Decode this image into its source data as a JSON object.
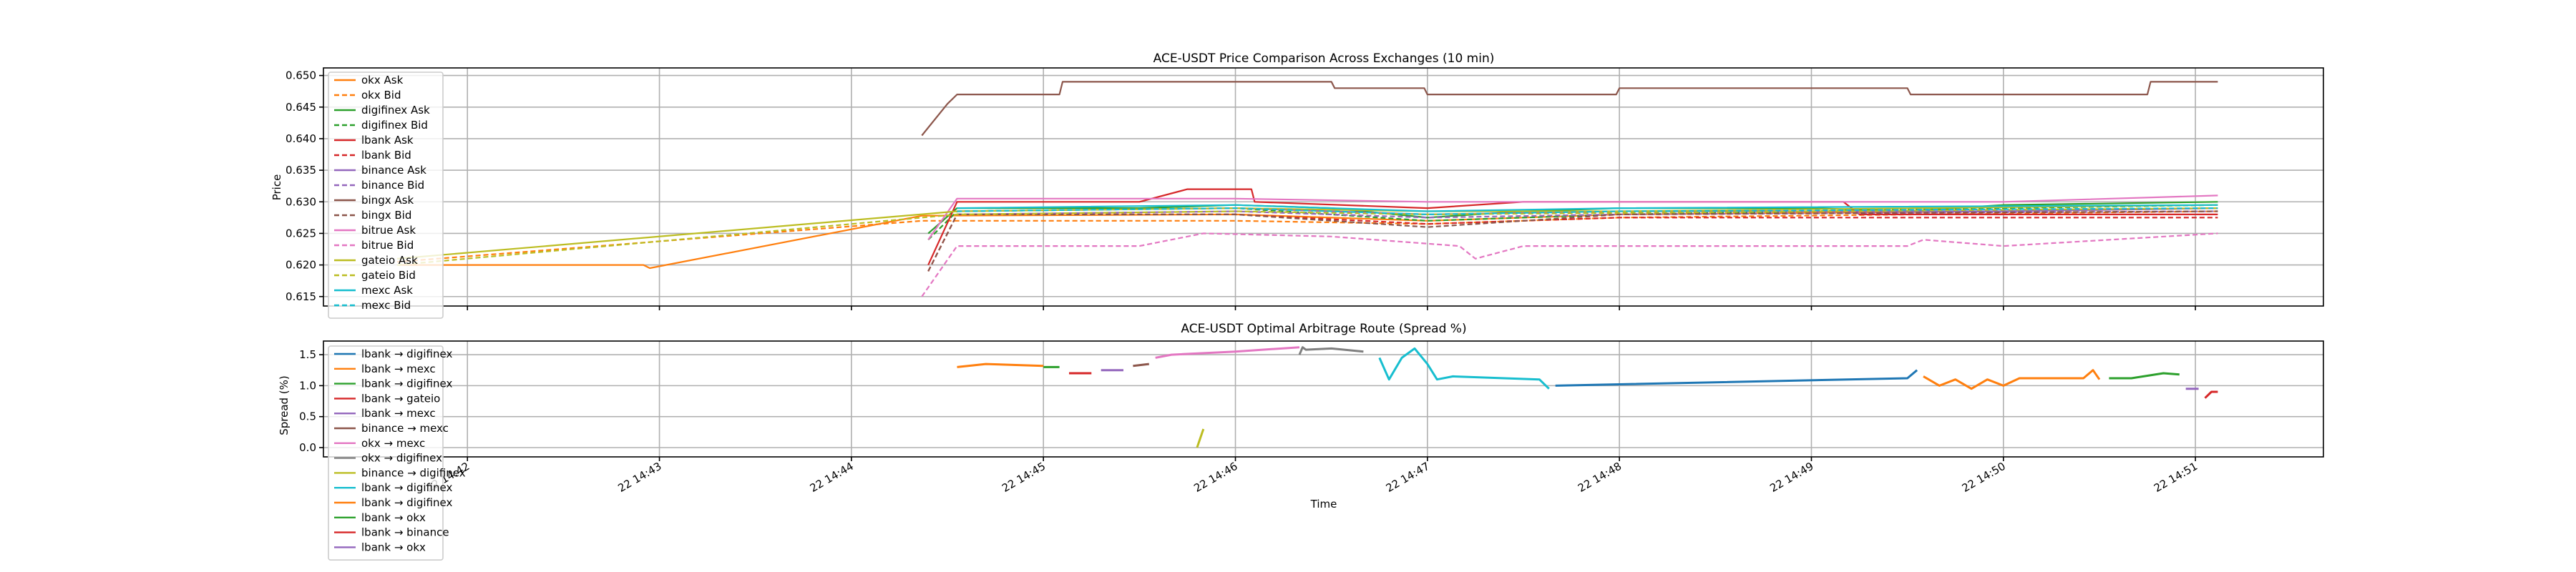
{
  "chart_data": [
    {
      "type": "line",
      "title": "ACE-USDT Price Comparison Across Exchanges (10 min)",
      "xlabel": "",
      "ylabel": "Price",
      "ylim": [
        0.6135,
        0.6512
      ],
      "yticks": [
        0.615,
        0.62,
        0.625,
        0.63,
        0.635,
        0.64,
        0.645,
        0.65
      ],
      "ytick_labels": [
        "0.615",
        "0.620",
        "0.625",
        "0.630",
        "0.635",
        "0.640",
        "0.645",
        "0.650"
      ],
      "grid": true,
      "legend_loc": "upper left",
      "series": [
        {
          "name": "okx Ask",
          "color": "#ff7f0e",
          "dash": "solid",
          "points": [
            [
              "14:41:38",
              0.62
            ],
            [
              "14:42:55",
              0.62
            ],
            [
              "14:42:57",
              0.6195
            ],
            [
              "14:44:22",
              0.6278
            ],
            [
              "14:46:00",
              0.628
            ],
            [
              "14:47:00",
              0.627
            ],
            [
              "14:48:00",
              0.628
            ],
            [
              "14:50:00",
              0.6285
            ],
            [
              "14:51:07",
              0.629
            ]
          ]
        },
        {
          "name": "okx Bid",
          "color": "#ff7f0e",
          "dash": "dash",
          "points": [
            [
              "14:41:38",
              0.6205
            ],
            [
              "14:44:22",
              0.627
            ],
            [
              "14:46:00",
              0.627
            ],
            [
              "14:47:00",
              0.6265
            ],
            [
              "14:48:00",
              0.6275
            ],
            [
              "14:51:07",
              0.6285
            ]
          ]
        },
        {
          "name": "digifinex Ask",
          "color": "#2ca02c",
          "dash": "solid",
          "points": [
            [
              "14:44:24",
              0.625
            ],
            [
              "14:44:33",
              0.629
            ],
            [
              "14:45:30",
              0.629
            ],
            [
              "14:46:00",
              0.6295
            ],
            [
              "14:46:30",
              0.629
            ],
            [
              "14:47:00",
              0.6275
            ],
            [
              "14:47:30",
              0.6285
            ],
            [
              "14:48:00",
              0.629
            ],
            [
              "14:49:00",
              0.629
            ],
            [
              "14:49:30",
              0.6285
            ],
            [
              "14:50:00",
              0.6295
            ],
            [
              "14:51:07",
              0.63
            ]
          ]
        },
        {
          "name": "digifinex Bid",
          "color": "#2ca02c",
          "dash": "dash",
          "points": [
            [
              "14:44:24",
              0.624
            ],
            [
              "14:44:33",
              0.6285
            ],
            [
              "14:46:00",
              0.629
            ],
            [
              "14:47:00",
              0.627
            ],
            [
              "14:48:00",
              0.628
            ],
            [
              "14:50:00",
              0.629
            ],
            [
              "14:51:07",
              0.6295
            ]
          ]
        },
        {
          "name": "lbank Ask",
          "color": "#d62728",
          "dash": "solid",
          "points": [
            [
              "14:44:24",
              0.62
            ],
            [
              "14:44:33",
              0.63
            ],
            [
              "14:45:30",
              0.63
            ],
            [
              "14:45:45",
              0.632
            ],
            [
              "14:46:05",
              0.632
            ],
            [
              "14:46:06",
              0.63
            ],
            [
              "14:47:00",
              0.629
            ],
            [
              "14:47:30",
              0.63
            ],
            [
              "14:49:10",
              0.63
            ],
            [
              "14:49:15",
              0.628
            ],
            [
              "14:51:07",
              0.628
            ]
          ]
        },
        {
          "name": "lbank Bid",
          "color": "#d62728",
          "dash": "dash",
          "points": [
            [
              "14:44:24",
              0.619
            ],
            [
              "14:44:33",
              0.628
            ],
            [
              "14:46:00",
              0.628
            ],
            [
              "14:47:00",
              0.6265
            ],
            [
              "14:48:00",
              0.6275
            ],
            [
              "14:51:07",
              0.6275
            ]
          ]
        },
        {
          "name": "binance Ask",
          "color": "#9467bd",
          "dash": "solid",
          "points": [
            [
              "14:44:33",
              0.6285
            ],
            [
              "14:46:00",
              0.629
            ],
            [
              "14:47:00",
              0.628
            ],
            [
              "14:48:00",
              0.6285
            ],
            [
              "14:50:00",
              0.6285
            ],
            [
              "14:51:07",
              0.629
            ]
          ]
        },
        {
          "name": "binance Bid",
          "color": "#9467bd",
          "dash": "dash",
          "points": [
            [
              "14:44:33",
              0.628
            ],
            [
              "14:46:00",
              0.6285
            ],
            [
              "14:47:00",
              0.6275
            ],
            [
              "14:48:00",
              0.628
            ],
            [
              "14:51:07",
              0.6285
            ]
          ]
        },
        {
          "name": "bingx Ask",
          "color": "#8c564b",
          "dash": "solid",
          "points": [
            [
              "14:44:22",
              0.6405
            ],
            [
              "14:44:30",
              0.6455
            ],
            [
              "14:44:33",
              0.647
            ],
            [
              "14:45:05",
              0.647
            ],
            [
              "14:45:06",
              0.649
            ],
            [
              "14:46:30",
              0.649
            ],
            [
              "14:46:31",
              0.648
            ],
            [
              "14:46:59",
              0.648
            ],
            [
              "14:47:00",
              0.647
            ],
            [
              "14:47:59",
              0.647
            ],
            [
              "14:48:00",
              0.648
            ],
            [
              "14:49:30",
              0.648
            ],
            [
              "14:49:31",
              0.647
            ],
            [
              "14:50:45",
              0.647
            ],
            [
              "14:50:46",
              0.649
            ],
            [
              "14:51:07",
              0.649
            ]
          ]
        },
        {
          "name": "bingx Bid",
          "color": "#8c564b",
          "dash": "dash",
          "points": [
            [
              "14:44:24",
              0.619
            ],
            [
              "14:44:33",
              0.628
            ],
            [
              "14:46:00",
              0.628
            ],
            [
              "14:47:00",
              0.626
            ],
            [
              "14:47:30",
              0.627
            ],
            [
              "14:48:00",
              0.628
            ],
            [
              "14:51:07",
              0.6285
            ]
          ]
        },
        {
          "name": "bitrue Ask",
          "color": "#e377c2",
          "dash": "solid",
          "points": [
            [
              "14:44:24",
              0.624
            ],
            [
              "14:44:33",
              0.6305
            ],
            [
              "14:46:00",
              0.6305
            ],
            [
              "14:47:00",
              0.63
            ],
            [
              "14:48:00",
              0.63
            ],
            [
              "14:50:00",
              0.63
            ],
            [
              "14:51:07",
              0.631
            ]
          ]
        },
        {
          "name": "bitrue Bid",
          "color": "#e377c2",
          "dash": "dash",
          "points": [
            [
              "14:44:22",
              0.615
            ],
            [
              "14:44:33",
              0.623
            ],
            [
              "14:45:30",
              0.623
            ],
            [
              "14:45:50",
              0.625
            ],
            [
              "14:46:30",
              0.6245
            ],
            [
              "14:47:10",
              0.623
            ],
            [
              "14:47:15",
              0.621
            ],
            [
              "14:47:30",
              0.623
            ],
            [
              "14:49:30",
              0.623
            ],
            [
              "14:49:35",
              0.624
            ],
            [
              "14:50:00",
              0.623
            ],
            [
              "14:51:07",
              0.625
            ]
          ]
        },
        {
          "name": "gateio Ask",
          "color": "#bcbd22",
          "dash": "solid",
          "points": [
            [
              "14:41:38",
              0.621
            ],
            [
              "14:44:33",
              0.6285
            ],
            [
              "14:46:00",
              0.629
            ],
            [
              "14:47:00",
              0.6285
            ],
            [
              "14:48:00",
              0.6285
            ],
            [
              "14:51:07",
              0.6295
            ]
          ]
        },
        {
          "name": "gateio Bid",
          "color": "#bcbd22",
          "dash": "dash",
          "points": [
            [
              "14:41:38",
              0.62
            ],
            [
              "14:44:33",
              0.628
            ],
            [
              "14:46:00",
              0.6285
            ],
            [
              "14:47:00",
              0.628
            ],
            [
              "14:51:07",
              0.629
            ]
          ]
        },
        {
          "name": "mexc Ask",
          "color": "#17becf",
          "dash": "solid",
          "points": [
            [
              "14:44:33",
              0.629
            ],
            [
              "14:46:00",
              0.6295
            ],
            [
              "14:47:00",
              0.6285
            ],
            [
              "14:48:00",
              0.629
            ],
            [
              "14:51:07",
              0.6295
            ]
          ]
        },
        {
          "name": "mexc Bid",
          "color": "#17becf",
          "dash": "dash",
          "points": [
            [
              "14:44:33",
              0.6285
            ],
            [
              "14:46:00",
              0.629
            ],
            [
              "14:47:00",
              0.628
            ],
            [
              "14:48:00",
              0.6285
            ],
            [
              "14:51:07",
              0.629
            ]
          ]
        }
      ]
    },
    {
      "type": "line",
      "title": "ACE-USDT Optimal Arbitrage Route (Spread %)",
      "xlabel": "Time",
      "ylabel": "Spread (%)",
      "ylim": [
        -0.15,
        1.72
      ],
      "yticks": [
        0.0,
        0.5,
        1.0,
        1.5
      ],
      "ytick_labels": [
        "0.0",
        "0.5",
        "1.0",
        "1.5"
      ],
      "xtick_labels": [
        "22 14:42",
        "22 14:43",
        "22 14:44",
        "22 14:45",
        "22 14:46",
        "22 14:47",
        "22 14:48",
        "22 14:49",
        "22 14:50",
        "22 14:51"
      ],
      "grid": true,
      "legend_loc": "upper left",
      "series": [
        {
          "name": "lbank → digifinex",
          "color": "#1f77b4",
          "dash": "solid",
          "points": [
            [
              "14:47:40",
              1.0
            ],
            [
              "14:49:30",
              1.12
            ],
            [
              "14:49:33",
              1.25
            ]
          ]
        },
        {
          "name": "lbank → mexc",
          "color": "#ff7f0e",
          "dash": "solid",
          "points": [
            [
              "14:44:33",
              1.3
            ],
            [
              "14:44:42",
              1.35
            ],
            [
              "14:45:00",
              1.32
            ]
          ]
        },
        {
          "name": "lbank → digifinex",
          "color": "#2ca02c",
          "dash": "solid",
          "points": [
            [
              "14:45:00",
              1.3
            ],
            [
              "14:45:05",
              1.3
            ]
          ]
        },
        {
          "name": "lbank → gateio",
          "color": "#d62728",
          "dash": "solid",
          "points": [
            [
              "14:45:08",
              1.2
            ],
            [
              "14:45:15",
              1.2
            ]
          ]
        },
        {
          "name": "lbank → mexc",
          "color": "#9467bd",
          "dash": "solid",
          "points": [
            [
              "14:45:18",
              1.25
            ],
            [
              "14:45:25",
              1.25
            ]
          ]
        },
        {
          "name": "binance → mexc",
          "color": "#8c564b",
          "dash": "solid",
          "points": [
            [
              "14:45:28",
              1.32
            ],
            [
              "14:45:33",
              1.35
            ]
          ]
        },
        {
          "name": "okx → mexc",
          "color": "#e377c2",
          "dash": "solid",
          "points": [
            [
              "14:45:35",
              1.45
            ],
            [
              "14:45:40",
              1.5
            ],
            [
              "14:46:00",
              1.55
            ],
            [
              "14:46:20",
              1.62
            ]
          ]
        },
        {
          "name": "okx → digifinex",
          "color": "#7f7f7f",
          "dash": "solid",
          "points": [
            [
              "14:46:20",
              1.5
            ],
            [
              "14:46:21",
              1.62
            ],
            [
              "14:46:22",
              1.58
            ],
            [
              "14:46:30",
              1.6
            ],
            [
              "14:46:40",
              1.55
            ]
          ]
        },
        {
          "name": "binance → digifinex",
          "color": "#bcbd22",
          "dash": "solid",
          "points": [
            [
              "14:45:48",
              0.0
            ],
            [
              "14:45:50",
              0.3
            ]
          ]
        },
        {
          "name": "lbank → digifinex",
          "color": "#17becf",
          "dash": "solid",
          "points": [
            [
              "14:46:45",
              1.45
            ],
            [
              "14:46:48",
              1.1
            ],
            [
              "14:46:52",
              1.45
            ],
            [
              "14:46:56",
              1.6
            ],
            [
              "14:47:00",
              1.35
            ],
            [
              "14:47:03",
              1.1
            ],
            [
              "14:47:08",
              1.15
            ],
            [
              "14:47:35",
              1.1
            ],
            [
              "14:47:38",
              0.95
            ]
          ]
        },
        {
          "name": "lbank → digifinex",
          "color": "#ff7f0e",
          "dash": "solid",
          "points": [
            [
              "14:49:35",
              1.15
            ],
            [
              "14:49:40",
              1.0
            ],
            [
              "14:49:45",
              1.1
            ],
            [
              "14:49:50",
              0.95
            ],
            [
              "14:49:55",
              1.1
            ],
            [
              "14:50:00",
              1.0
            ],
            [
              "14:50:05",
              1.12
            ],
            [
              "14:50:25",
              1.12
            ],
            [
              "14:50:28",
              1.25
            ],
            [
              "14:50:30",
              1.1
            ]
          ]
        },
        {
          "name": "lbank → okx",
          "color": "#2ca02c",
          "dash": "solid",
          "points": [
            [
              "14:50:33",
              1.12
            ],
            [
              "14:50:40",
              1.12
            ],
            [
              "14:50:50",
              1.2
            ],
            [
              "14:50:55",
              1.18
            ]
          ]
        },
        {
          "name": "lbank → binance",
          "color": "#d62728",
          "dash": "solid",
          "points": [
            [
              "14:51:03",
              0.8
            ],
            [
              "14:51:05",
              0.9
            ],
            [
              "14:51:07",
              0.9
            ]
          ]
        },
        {
          "name": "lbank → okx",
          "color": "#9467bd",
          "dash": "solid",
          "points": [
            [
              "14:50:57",
              0.95
            ],
            [
              "14:51:01",
              0.95
            ]
          ]
        }
      ]
    }
  ]
}
